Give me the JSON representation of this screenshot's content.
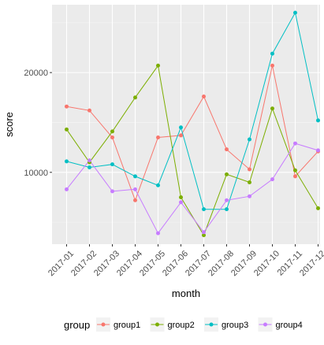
{
  "chart_data": {
    "type": "line",
    "title": "",
    "xlabel": "month",
    "ylabel": "score",
    "categories": [
      "2017-01",
      "2017-02",
      "2017-03",
      "2017-04",
      "2017-05",
      "2017-06",
      "2017-07",
      "2017-08",
      "2017-09",
      "2017-10",
      "2017-11",
      "2017-12"
    ],
    "y_ticks": [
      10000,
      20000
    ],
    "y_tick_labels": [
      "10000",
      "20000"
    ],
    "ylim": [
      2800,
      26800
    ],
    "grid": true,
    "legend": {
      "title": "group",
      "position": "bottom"
    },
    "series": [
      {
        "name": "group1",
        "color": "#F8766D",
        "values": [
          16600,
          16200,
          13500,
          7200,
          13500,
          13700,
          17600,
          12300,
          10300,
          20700,
          9600,
          12100
        ]
      },
      {
        "name": "group2",
        "color": "#7CAE00",
        "values": [
          14300,
          11000,
          14100,
          17500,
          20700,
          7500,
          3700,
          9800,
          9000,
          16400,
          10200,
          6400
        ]
      },
      {
        "name": "group3",
        "color": "#00BFC4",
        "values": [
          11100,
          10500,
          10800,
          9600,
          8700,
          14500,
          6300,
          6300,
          13300,
          21900,
          26000,
          15200
        ]
      },
      {
        "name": "group4",
        "color": "#C77CFF",
        "values": [
          8300,
          11200,
          8100,
          8300,
          3900,
          7000,
          4000,
          7200,
          7600,
          9300,
          12900,
          12200
        ]
      }
    ]
  }
}
